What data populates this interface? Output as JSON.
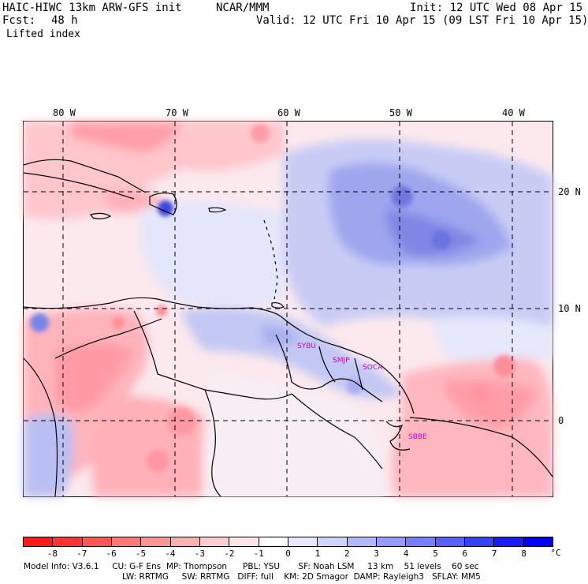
{
  "header": {
    "model": "HAIC-HIWC 13km ARW-GFS init",
    "org": "NCAR/MMM",
    "init": "Init: 12 UTC Wed 08 Apr 15",
    "fcst_label": "Fcst:",
    "fcst_value": "48 h",
    "valid": "Valid: 12 UTC Fri 10 Apr 15 (09 LST Fri 10 Apr 15)",
    "field": "Lifted index"
  },
  "map": {
    "lon_labels": [
      "80 W",
      "70 W",
      "60 W",
      "50 W",
      "40 W"
    ],
    "lat_labels": [
      "20 N",
      "10 N",
      "0"
    ],
    "stations": [
      "SYBU",
      "SMJP",
      "SOCA",
      "SBBE"
    ]
  },
  "legend": {
    "ticks": [
      "-8",
      "-7",
      "-6",
      "-5",
      "-4",
      "-3",
      "-2",
      "-1",
      "0",
      "1",
      "2",
      "3",
      "4",
      "5",
      "6",
      "7",
      "8"
    ],
    "unit": "°C",
    "colors": [
      "#ff1a1a",
      "#ff3535",
      "#ff5656",
      "#ff7676",
      "#ff9494",
      "#ffb1b1",
      "#ffcdcd",
      "#ffe6e6",
      "#ffffff",
      "#e6e8ff",
      "#cdd2ff",
      "#b1b8ff",
      "#949dff",
      "#7680ff",
      "#5661ff",
      "#3540ff",
      "#1a1aff",
      "#0000ff"
    ]
  },
  "footer": {
    "line1": "Model Info: V3.6.1     CU: G-F Ens  MP: Thompson      PBL: YSU       SF: Noah LSM     13 km    51 levels    60 sec",
    "line2": "LW: RRTMG     SW: RRTMG   DIFF: full    KM: 2D Smagor  DAMP: Rayleigh3   SFLAY: MM5"
  }
}
